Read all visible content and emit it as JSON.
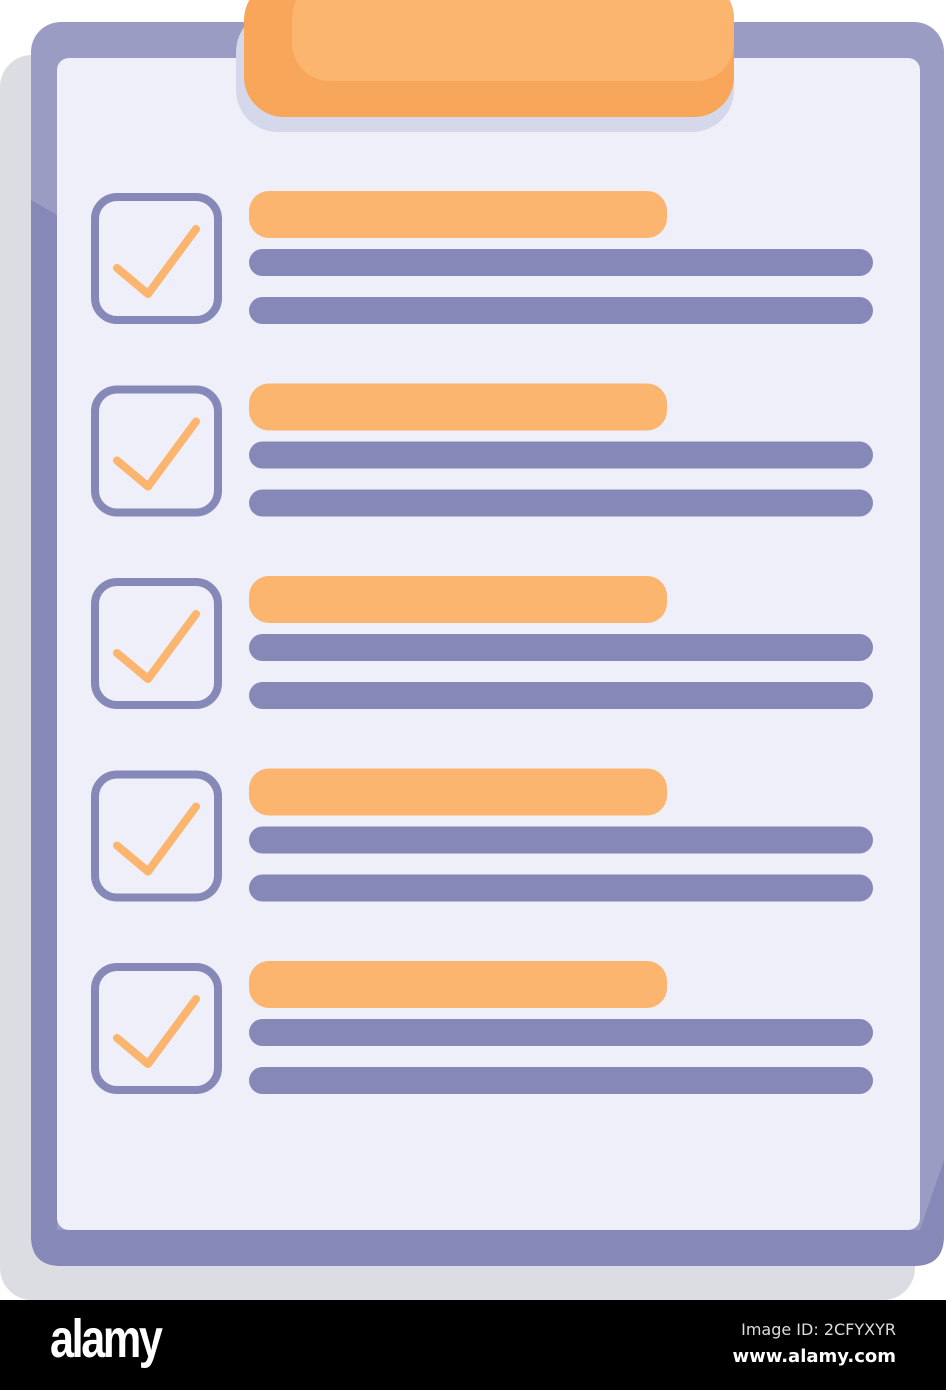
{
  "illustration": {
    "colors": {
      "board": "#9a9cc4",
      "board_dark": "#8688b8",
      "paper": "#eeeff8",
      "shadow": "#dcdde3",
      "clip": "#fbb56e",
      "clip_dark": "#f8a65a",
      "accent_bar": "#fbb56e",
      "text_line": "#8688b8",
      "checkmark": "#fbb56e"
    },
    "items": [
      {
        "checked": true
      },
      {
        "checked": true
      },
      {
        "checked": true
      },
      {
        "checked": true
      },
      {
        "checked": true
      }
    ]
  },
  "banner": {
    "logo": "alamy",
    "image_id": "Image ID: 2CFYXYR",
    "website": "www.alamy.com"
  }
}
